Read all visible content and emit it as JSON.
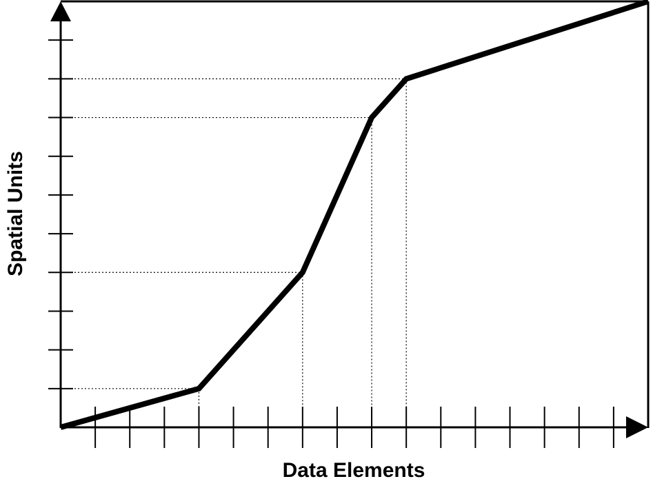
{
  "chart_data": {
    "type": "line",
    "xlabel": "Data Elements",
    "ylabel": "Spatial Units",
    "xlim": [
      0,
      17
    ],
    "ylim": [
      0,
      11
    ],
    "x_ticks": [
      1,
      2,
      3,
      4,
      5,
      6,
      7,
      8,
      9,
      10,
      11,
      12,
      13,
      14,
      15,
      16
    ],
    "y_ticks": [
      1,
      2,
      3,
      4,
      5,
      6,
      7,
      8,
      9,
      10
    ],
    "series": [
      {
        "x": [
          0,
          4,
          7,
          9,
          10,
          17
        ],
        "y": [
          0,
          1,
          4,
          8,
          9,
          11
        ]
      }
    ],
    "guides": [
      {
        "x": 4,
        "y": 1
      },
      {
        "x": 7,
        "y": 4
      },
      {
        "x": 9,
        "y": 8
      },
      {
        "x": 10,
        "y": 9
      }
    ],
    "grid": false,
    "colors": {
      "line": "#000000",
      "axis": "#000000",
      "guide": "#000000"
    }
  }
}
